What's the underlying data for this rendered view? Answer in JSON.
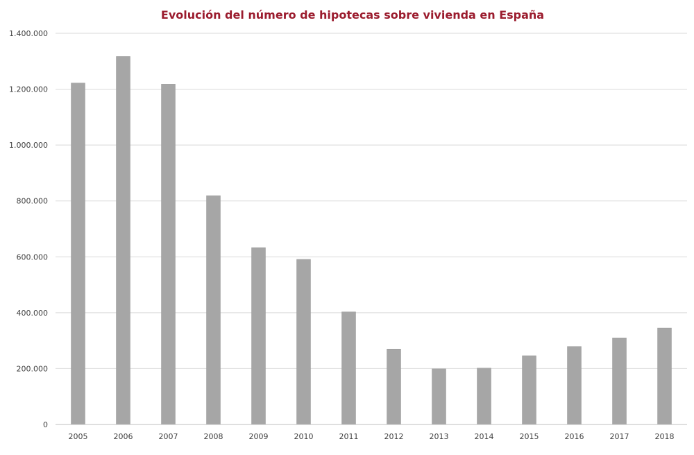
{
  "chart_data": {
    "type": "bar",
    "title": "Evolución del número de hipotecas sobre vivienda en España",
    "xlabel": "",
    "ylabel": "",
    "categories": [
      "2005",
      "2006",
      "2007",
      "2008",
      "2009",
      "2010",
      "2011",
      "2012",
      "2013",
      "2014",
      "2015",
      "2016",
      "2017",
      "2018"
    ],
    "values": [
      1222000,
      1317000,
      1218000,
      819000,
      633000,
      591000,
      403000,
      270000,
      199000,
      202000,
      246000,
      279000,
      310000,
      345000
    ],
    "ylim": [
      0,
      1400000
    ],
    "yticks": [
      0,
      200000,
      400000,
      600000,
      800000,
      1000000,
      1200000,
      1400000
    ],
    "ytick_labels": [
      "0",
      "200.000",
      "400.000",
      "600.000",
      "800.000",
      "1.000.000",
      "1.200.000",
      "1.400.000"
    ],
    "grid": true,
    "legend": "none",
    "colors": {
      "bar": "#a6a6a6",
      "bar_edge": "#9a9a9a",
      "title": "#9b1c2e",
      "grid": "#d9d9d9",
      "axis": "#bfbfbf"
    }
  }
}
